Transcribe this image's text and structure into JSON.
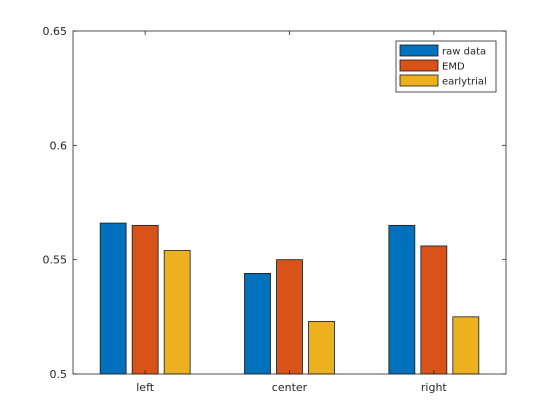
{
  "chart_data": {
    "type": "bar",
    "title": "",
    "xlabel": "",
    "ylabel": "",
    "categories": [
      "left",
      "center",
      "right"
    ],
    "series": [
      {
        "name": "raw data",
        "color": "#0072BD",
        "values": [
          0.566,
          0.544,
          0.565
        ]
      },
      {
        "name": "EMD",
        "color": "#D95319",
        "values": [
          0.565,
          0.55,
          0.556
        ]
      },
      {
        "name": "earlytrial",
        "color": "#EDB120",
        "values": [
          0.554,
          0.523,
          0.525
        ]
      }
    ],
    "ylim": [
      0.5,
      0.65
    ],
    "yticks": [
      "0.5",
      "0.55",
      "0.6",
      "0.65"
    ],
    "yticks_values": [
      0.5,
      0.55,
      0.6,
      0.65
    ],
    "grid": false,
    "legend": "top-right"
  }
}
